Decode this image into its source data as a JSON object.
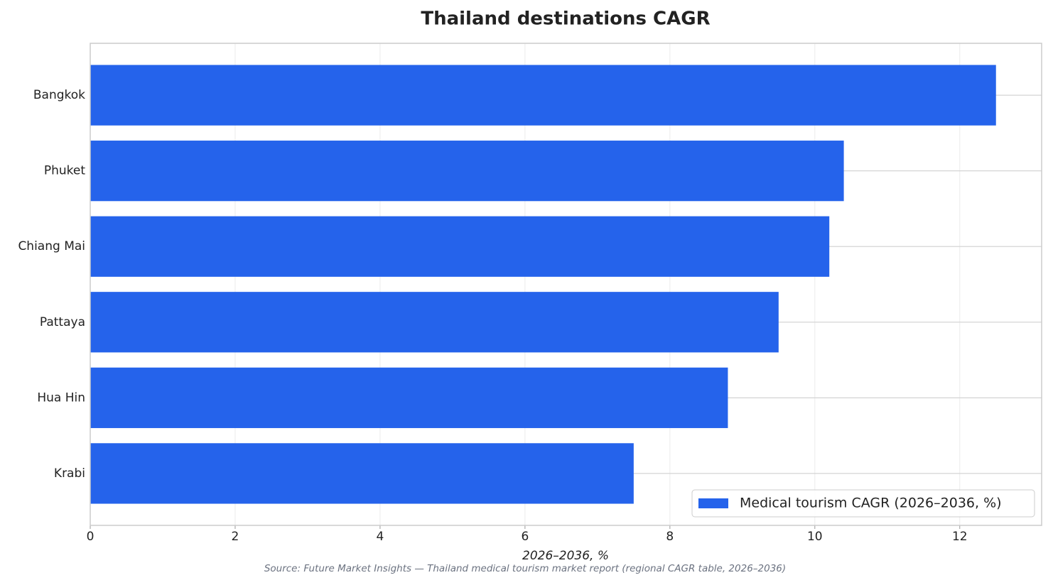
{
  "chart_data": {
    "type": "bar",
    "orientation": "horizontal",
    "title": "Thailand destinations CAGR",
    "categories": [
      "Bangkok",
      "Phuket",
      "Chiang Mai",
      "Pattaya",
      "Hua Hin",
      "Krabi"
    ],
    "series": [
      {
        "name": "Medical tourism CAGR (2026–2036, %)",
        "color": "#2563eb",
        "values": [
          12.5,
          10.4,
          10.2,
          9.5,
          8.8,
          7.5
        ]
      }
    ],
    "xlabel": "2026–2036, %",
    "xlim": [
      0,
      13.13
    ],
    "xticks": [
      0,
      2,
      4,
      6,
      8,
      10,
      12
    ],
    "grid": true,
    "legend": "lower right",
    "source": "Source: Future Market Insights — Thailand medical tourism market report (regional CAGR table, 2026–2036)"
  }
}
